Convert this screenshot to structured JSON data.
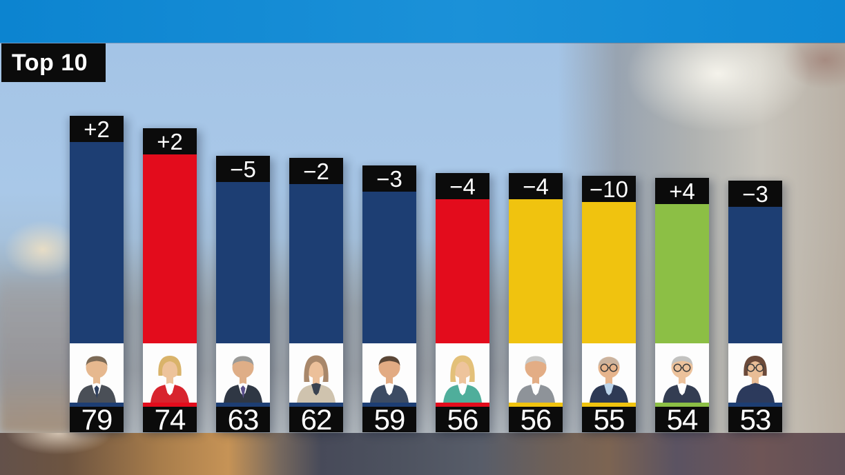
{
  "header": {
    "badge": "Top 10"
  },
  "colors": {
    "top_strip": "#0d86d2",
    "badge_bg": "#0b0b0b",
    "badge_text": "#ffffff",
    "party_navy": "#1d3e73",
    "party_red": "#e30c1c",
    "party_yellow": "#f0c30f",
    "party_green": "#8cbf45"
  },
  "chart_data": {
    "type": "bar",
    "title": "Top 10",
    "xlabel": "",
    "ylabel": "",
    "ylim": [
      0,
      100
    ],
    "legend": "none",
    "axes_visible": false,
    "bar_label_top": "change vs previous poll",
    "bar_label_bottom": "score",
    "entries": [
      {
        "rank": 1,
        "score": 79,
        "change": "+2",
        "party_color": "#1d3e73",
        "portrait": {
          "hair": "short",
          "hair_color": "#7c6a56",
          "skin": "#e6b88f",
          "top": "#4a4f57",
          "shirt": "#ffffff",
          "tie": "#2e3f5e",
          "glasses": false
        }
      },
      {
        "rank": 2,
        "score": 74,
        "change": "+2",
        "party_color": "#e30c1c",
        "portrait": {
          "hair": "bob",
          "hair_color": "#d9b36a",
          "skin": "#edc39b",
          "top": "#d8242e",
          "shirt": "#ffffff",
          "glasses": false
        }
      },
      {
        "rank": 3,
        "score": 63,
        "change": "−5",
        "party_color": "#1d3e73",
        "portrait": {
          "hair": "short",
          "hair_color": "#9a9a98",
          "skin": "#dfae87",
          "top": "#2f3744",
          "shirt": "#ffffff",
          "tie": "#5a4f8a",
          "glasses": false
        }
      },
      {
        "rank": 4,
        "score": 62,
        "change": "−2",
        "party_color": "#1d3e73",
        "portrait": {
          "hair": "long",
          "hair_color": "#a8876a",
          "skin": "#ecc09a",
          "top": "#cfc3ae",
          "shirt": "#3a4250",
          "glasses": false
        }
      },
      {
        "rank": 5,
        "score": 59,
        "change": "−3",
        "party_color": "#1d3e73",
        "portrait": {
          "hair": "short",
          "hair_color": "#5a4636",
          "skin": "#e2ab83",
          "top": "#3c4b63",
          "shirt": "#ffffff",
          "glasses": false
        }
      },
      {
        "rank": 6,
        "score": 56,
        "change": "−4",
        "party_color": "#e30c1c",
        "portrait": {
          "hair": "long",
          "hair_color": "#e3c079",
          "skin": "#eec49c",
          "top": "#4fae9b",
          "shirt": "#ffffff",
          "glasses": false
        }
      },
      {
        "rank": 7,
        "score": 56,
        "change": "−4",
        "party_color": "#f0c30f",
        "portrait": {
          "hair": "short",
          "hair_color": "#c9c9c7",
          "skin": "#e3ad85",
          "top": "#8e9399",
          "shirt": "#ffffff",
          "glasses": false
        }
      },
      {
        "rank": 8,
        "score": 55,
        "change": "−10",
        "party_color": "#f0c30f",
        "portrait": {
          "hair": "bald",
          "hair_color": "#b5b2ad",
          "skin": "#e6b48c",
          "top": "#2e3a55",
          "shirt": "#bcd4ea",
          "glasses": true
        }
      },
      {
        "rank": 9,
        "score": 54,
        "change": "+4",
        "party_color": "#8cbf45",
        "portrait": {
          "hair": "short",
          "hair_color": "#c2c2c0",
          "skin": "#ecc29c",
          "top": "#333d52",
          "shirt": "#ffffff",
          "glasses": true
        }
      },
      {
        "rank": 10,
        "score": 53,
        "change": "−3",
        "party_color": "#1d3e73",
        "portrait": {
          "hair": "bob",
          "hair_color": "#6b4a3a",
          "skin": "#e9bd96",
          "top": "#2c3a5c",
          "shirt": "#2c3a5c",
          "glasses": true
        }
      }
    ]
  }
}
